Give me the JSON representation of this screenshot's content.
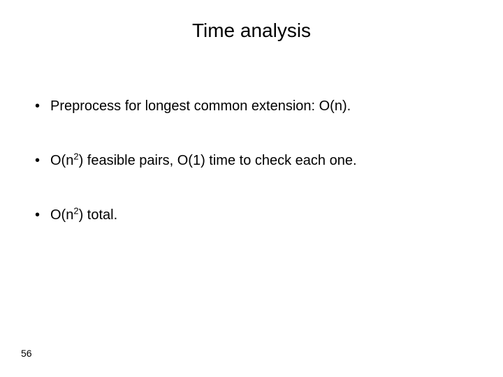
{
  "title": "Time analysis",
  "bullets": [
    {
      "pre": "Preprocess for longest common extension: O(n)."
    },
    {
      "pre": "O(n",
      "sup": "2",
      "post": ") feasible pairs, O(1) time to check each one."
    },
    {
      "pre": "O(n",
      "sup": "2",
      "post": ") total."
    }
  ],
  "page_number": "56",
  "colors": {
    "background": "#ffffff",
    "text": "#000000"
  },
  "typography": {
    "title_fontsize": 28,
    "body_fontsize": 20,
    "pagenum_fontsize": 14,
    "font_family": "Arial"
  }
}
